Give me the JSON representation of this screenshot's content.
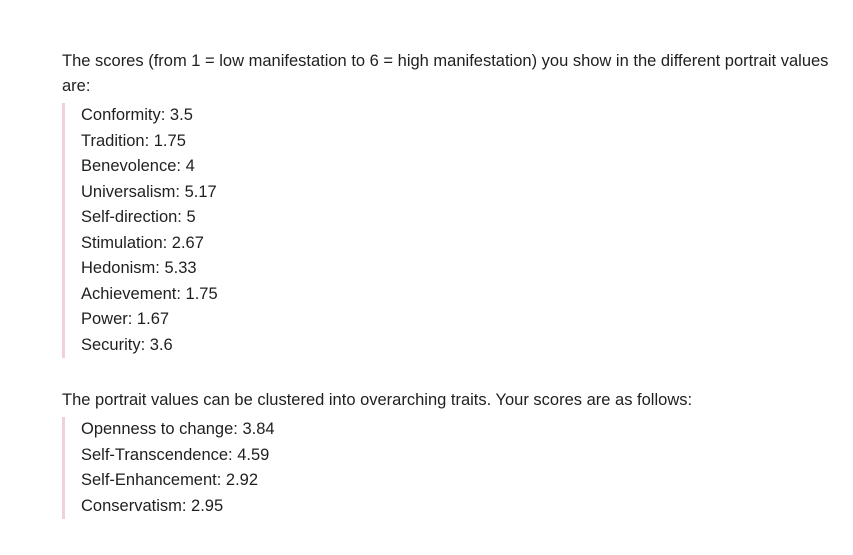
{
  "intro": "The scores (from 1 = low manifestation to 6 = high manifestation) you show in the different portrait values are:",
  "values": [
    "Conformity: 3.5",
    "Tradition: 1.75",
    "Benevolence: 4",
    "Universalism: 5.17",
    "Self-direction: 5",
    "Stimulation: 2.67",
    "Hedonism: 5.33",
    "Achievement: 1.75",
    "Power: 1.67",
    "Security: 3.6"
  ],
  "traits_intro": "The portrait values can be clustered into overarching traits.  Your scores are as follows:",
  "traits": [
    "Openness to change: 3.84",
    "Self-Transcendence: 4.59",
    "Self-Enhancement: 2.92",
    "Conservatism: 2.95"
  ],
  "accent_color": "#f0cfe0"
}
